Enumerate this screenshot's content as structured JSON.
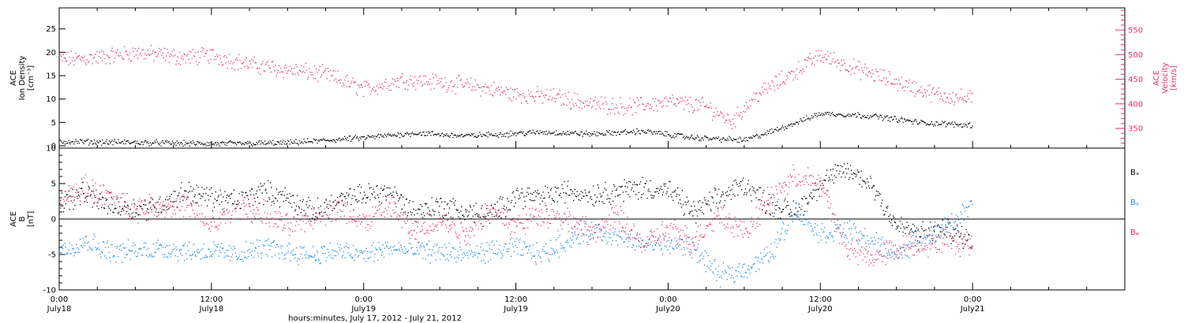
{
  "colors": {
    "black": "#000000",
    "velocity": "#e8336a",
    "by": "#1e88e5",
    "bz": "#e8336a"
  },
  "chart_data": [
    {
      "type": "scatter",
      "panel": "top",
      "x_unit": "hours since 2012-07-18 00:00",
      "xlim": [
        0,
        84
      ],
      "left_axis": {
        "label_lines": [
          "ACE",
          "Ion Density",
          "[cm⁻³]"
        ],
        "ylim": [
          -0.5,
          29.5
        ],
        "ticks": [
          0,
          5,
          10,
          15,
          20,
          25
        ]
      },
      "right_axis": {
        "label_lines": [
          "ACE",
          "Velocity",
          "[km/s]"
        ],
        "ylim": [
          310,
          595
        ],
        "ticks": [
          350,
          400,
          450,
          500,
          550
        ]
      },
      "series": [
        {
          "name": "",
          "axis": "left",
          "color": "#000000",
          "x": [
            0,
            6,
            12,
            18,
            24,
            28,
            32,
            38,
            42,
            46,
            50,
            54,
            56,
            60,
            64,
            68,
            72
          ],
          "y": [
            1.0,
            0.8,
            0.5,
            0.7,
            1.8,
            2.8,
            2.2,
            3.0,
            2.6,
            3.2,
            1.8,
            1.3,
            3.0,
            7.0,
            6.5,
            5.0,
            4.5
          ]
        },
        {
          "name": "",
          "axis": "right",
          "color": "#e8336a",
          "x": [
            0,
            3,
            6,
            10,
            12,
            15,
            18,
            21,
            24,
            27,
            30,
            33,
            36,
            39,
            42,
            45,
            48,
            51,
            53,
            55,
            57,
            60,
            63,
            66,
            69,
            72
          ],
          "y": [
            490,
            495,
            505,
            495,
            500,
            480,
            470,
            460,
            430,
            450,
            445,
            435,
            420,
            415,
            400,
            395,
            405,
            395,
            365,
            420,
            450,
            500,
            470,
            445,
            420,
            410
          ]
        }
      ]
    },
    {
      "type": "scatter",
      "panel": "bottom",
      "x_unit": "hours since 2012-07-18 00:00",
      "xlim": [
        0,
        84
      ],
      "left_axis": {
        "label_lines": [
          "ACE",
          "B",
          "[nT]"
        ],
        "ylim": [
          -10,
          10
        ],
        "ticks": [
          -10,
          -5,
          0,
          5,
          10
        ]
      },
      "zero_line": true,
      "legend": [
        "Bₓ",
        "Bᵧ",
        "Bᵩ"
      ],
      "series": [
        {
          "name": "Bx",
          "color": "#000000",
          "x": [
            0,
            2,
            4,
            6,
            8,
            10,
            12,
            14,
            16,
            18,
            20,
            22,
            24,
            26,
            28,
            30,
            32,
            34,
            36,
            38,
            40,
            42,
            44,
            46,
            48,
            50,
            52,
            54,
            56,
            58,
            60,
            62,
            64,
            66,
            68,
            70,
            72
          ],
          "y": [
            2.5,
            3.5,
            2.0,
            1.5,
            2.0,
            4.0,
            3.0,
            2.5,
            4.0,
            3.0,
            1.0,
            2.5,
            3.5,
            4.0,
            1.0,
            2.0,
            1.0,
            0.5,
            3.5,
            3.0,
            4.0,
            3.5,
            4.0,
            4.5,
            4.0,
            1.0,
            3.0,
            5.0,
            2.0,
            1.0,
            5.0,
            7.0,
            5.0,
            -1.0,
            -2.0,
            -1.5,
            -3.0
          ]
        },
        {
          "name": "By",
          "color": "#1e88e5",
          "x": [
            0,
            2,
            4,
            6,
            8,
            10,
            12,
            14,
            16,
            18,
            20,
            22,
            24,
            26,
            28,
            30,
            32,
            34,
            36,
            38,
            40,
            42,
            44,
            46,
            48,
            50,
            52,
            54,
            56,
            58,
            60,
            62,
            64,
            66,
            68,
            70,
            72
          ],
          "y": [
            -4.5,
            -3.0,
            -4.5,
            -4.5,
            -4.0,
            -4.5,
            -4.5,
            -5.0,
            -4.0,
            -4.5,
            -5.0,
            -4.5,
            -5.0,
            -4.0,
            -4.5,
            -4.5,
            -5.0,
            -4.5,
            -4.0,
            -5.0,
            -3.0,
            -1.5,
            -2.5,
            -3.5,
            -3.5,
            -4.0,
            -8.0,
            -7.0,
            -5.0,
            1.5,
            -2.0,
            -1.5,
            -3.0,
            -5.0,
            -2.5,
            -1.0,
            2.0
          ]
        },
        {
          "name": "Bz",
          "color": "#e8336a",
          "x": [
            0,
            2,
            4,
            6,
            8,
            10,
            12,
            14,
            16,
            18,
            20,
            22,
            24,
            26,
            28,
            30,
            32,
            34,
            36,
            38,
            40,
            42,
            44,
            46,
            48,
            50,
            52,
            54,
            56,
            58,
            60,
            62,
            64,
            66,
            68,
            70,
            72
          ],
          "y": [
            2.5,
            4.5,
            3.0,
            1.5,
            2.0,
            2.0,
            -1.0,
            1.5,
            1.0,
            -1.0,
            0.5,
            1.5,
            -0.5,
            2.0,
            -2.0,
            0.0,
            -2.0,
            1.5,
            -1.0,
            1.0,
            0.0,
            -2.0,
            0.5,
            -3.5,
            -1.5,
            -3.0,
            1.0,
            -2.0,
            3.0,
            6.0,
            5.0,
            -4.0,
            -5.5,
            -4.0,
            -3.5,
            -3.0,
            -3.5
          ]
        }
      ]
    }
  ],
  "x_axis": {
    "ticks": [
      {
        "hour": 0,
        "time": "0:00",
        "date": "July18"
      },
      {
        "hour": 12,
        "time": "12:00",
        "date": "July18"
      },
      {
        "hour": 24,
        "time": "0:00",
        "date": "July19"
      },
      {
        "hour": 36,
        "time": "12:00",
        "date": "July19"
      },
      {
        "hour": 48,
        "time": "0:00",
        "date": "July20"
      },
      {
        "hour": 60,
        "time": "12:00",
        "date": "July20"
      },
      {
        "hour": 72,
        "time": "0:00",
        "date": "July21"
      }
    ],
    "title": "hours:minutes, July 17, 2012 - July 21, 2012"
  }
}
